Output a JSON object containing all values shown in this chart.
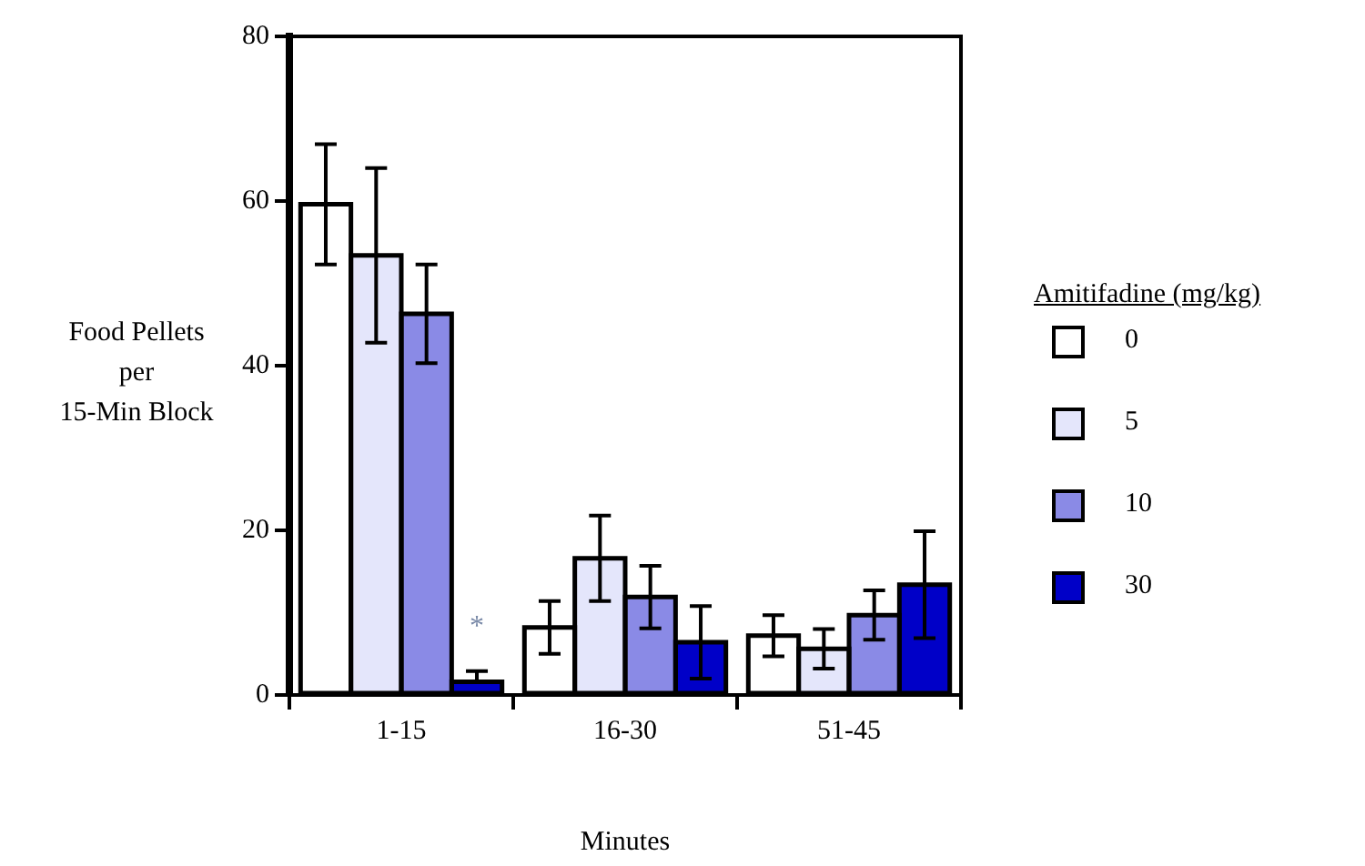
{
  "chart_data": {
    "type": "bar",
    "xlabel": "Minutes",
    "ylabel": "Food Pellets\nper\n15-Min Block",
    "legend_title": "Amitifadine (mg/kg)",
    "categories": [
      "1-15",
      "16-30",
      "51-45"
    ],
    "series": [
      {
        "name": "0",
        "color": "#ffffff",
        "values": [
          59.6,
          8.2,
          7.2
        ],
        "errors": [
          7.3,
          3.2,
          2.5
        ]
      },
      {
        "name": "5",
        "color": "#e4e6fb",
        "values": [
          53.4,
          16.6,
          5.6
        ],
        "errors": [
          10.6,
          5.2,
          2.4
        ]
      },
      {
        "name": "10",
        "color": "#8a8ae6",
        "values": [
          46.3,
          11.9,
          9.7
        ],
        "errors": [
          6,
          3.8,
          3
        ]
      },
      {
        "name": "30",
        "color": "#0000c8",
        "values": [
          1.6,
          6.4,
          13.4
        ],
        "errors": [
          [
            1.6,
            2.9
          ],
          4.4,
          6.5
        ]
      }
    ],
    "annotations": [
      "*"
    ],
    "ylim": [
      0,
      80
    ],
    "yticks": [
      0,
      20,
      40,
      60,
      80
    ],
    "grid": false,
    "legend": "right"
  }
}
